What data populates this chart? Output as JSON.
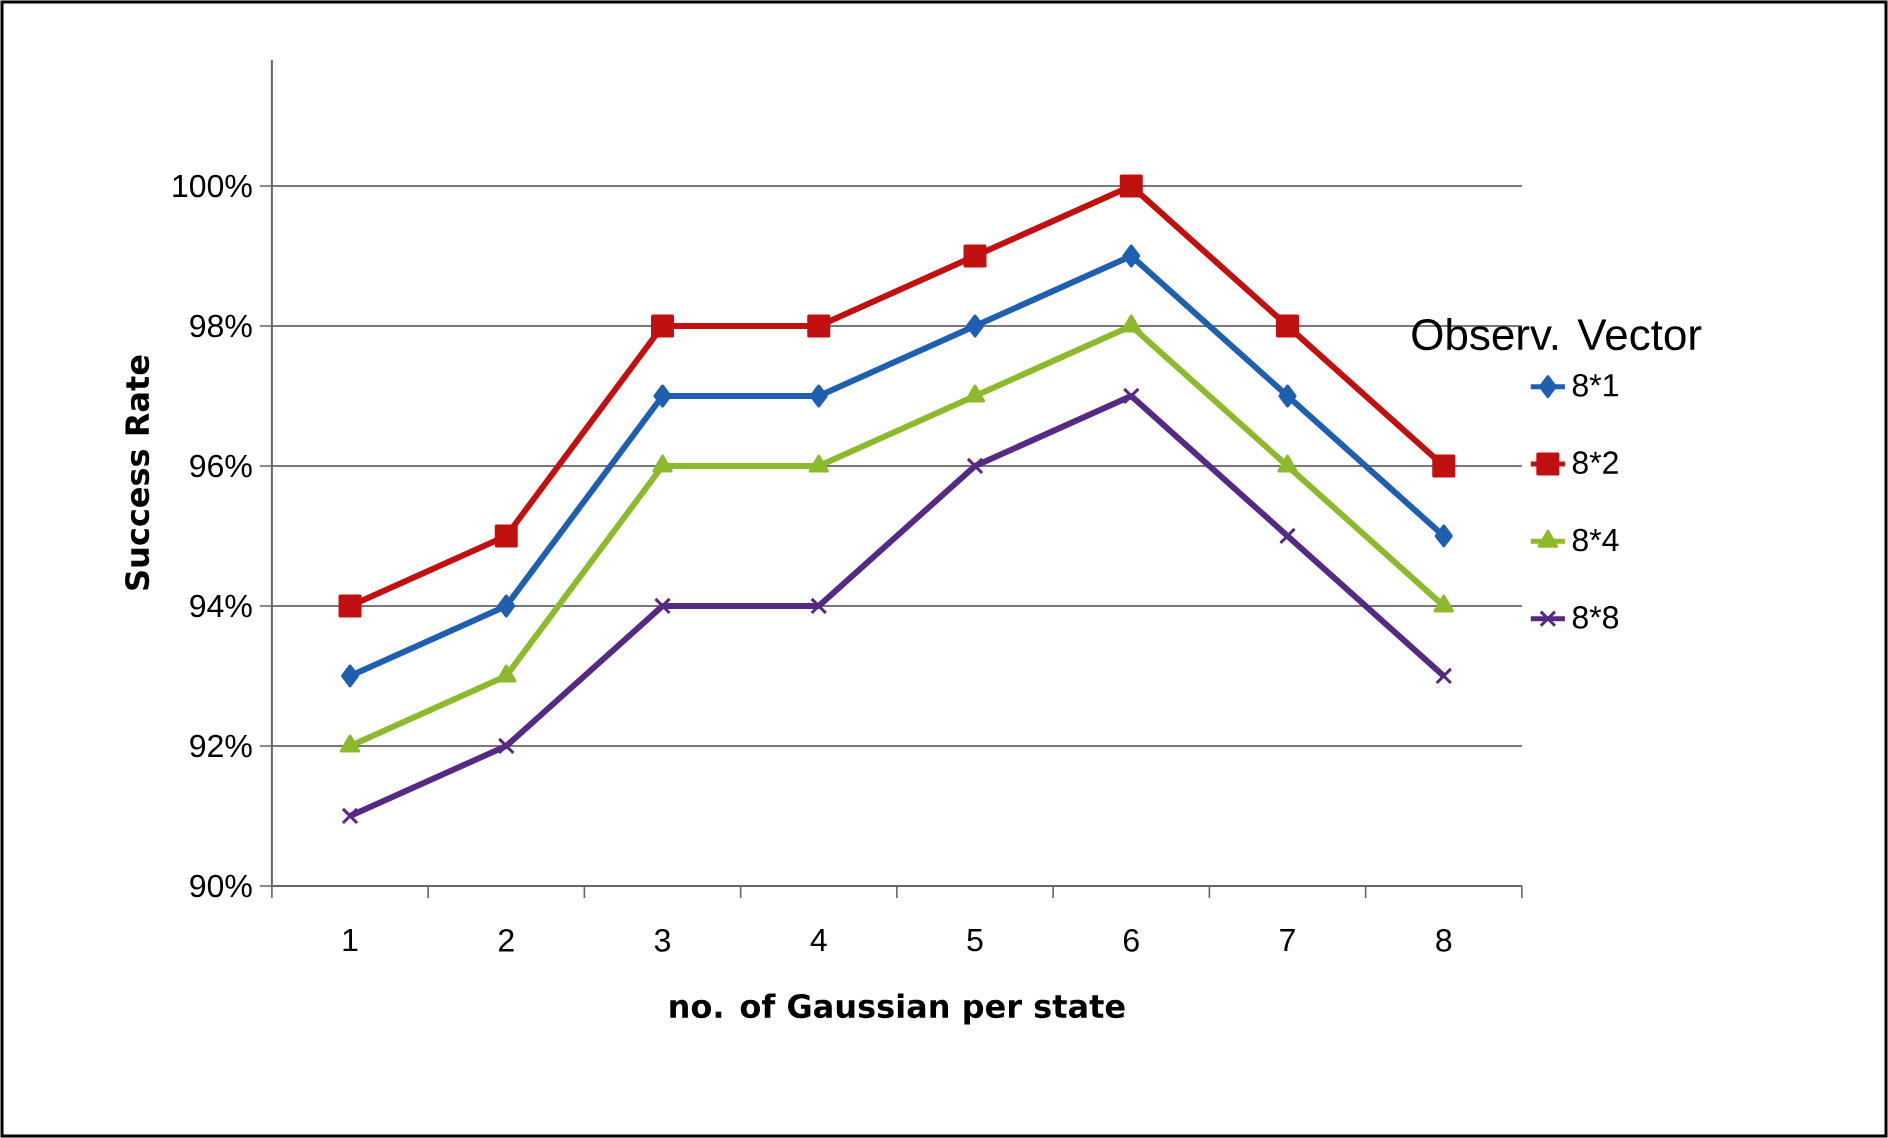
{
  "chart_data": {
    "type": "line",
    "xlabel": "no. of Gaussian  per state",
    "ylabel": "Success Rate",
    "legend_title": "Observ. Vector",
    "categories": [
      "1",
      "2",
      "3",
      "4",
      "5",
      "6",
      "7",
      "8"
    ],
    "series": [
      {
        "name": "8*1",
        "color": "#1f5fb0",
        "marker": "diamond",
        "values": [
          93,
          94,
          97,
          97,
          98,
          99,
          97,
          95
        ]
      },
      {
        "name": "8*2",
        "color": "#c0100f",
        "marker": "square",
        "values": [
          94,
          95,
          98,
          98,
          99,
          100,
          98,
          96
        ]
      },
      {
        "name": "8*4",
        "color": "#8cba2c",
        "marker": "triangle",
        "values": [
          92,
          93,
          96,
          96,
          97,
          98,
          96,
          94
        ]
      },
      {
        "name": "8*8",
        "color": "#562a84",
        "marker": "cross",
        "values": [
          91,
          92,
          94,
          94,
          96,
          97,
          95,
          93
        ]
      }
    ],
    "ylim": [
      90,
      101.8
    ],
    "yticks": [
      {
        "value": 90,
        "label": "90%"
      },
      {
        "value": 92,
        "label": "92%"
      },
      {
        "value": 94,
        "label": "94%"
      },
      {
        "value": 96,
        "label": "96%"
      },
      {
        "value": 98,
        "label": "98%"
      },
      {
        "value": 100,
        "label": "100%"
      }
    ],
    "grid": "y",
    "legend": "right",
    "line_style": "solid"
  }
}
